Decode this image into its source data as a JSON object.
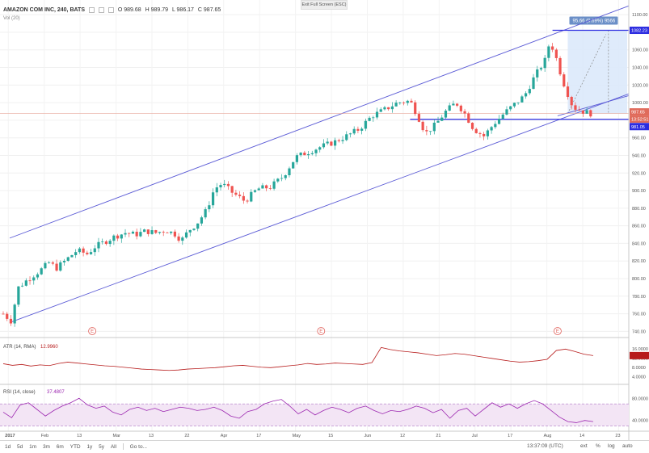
{
  "header": {
    "symbol": "AMAZON COM INC, 240, BATS",
    "o": "O 989.68",
    "h": "H 989.79",
    "l": "L 986.17",
    "c": "C 987.65",
    "volume_label": "Vol (20)"
  },
  "exit_fullscreen": "Exit Full Screen (ESC)",
  "measure_label": "95.66 (9.69%) 9566",
  "price_labels": {
    "target": "1082.23",
    "last": "987.65",
    "countdown": "13:52:51",
    "support": "981.05"
  },
  "atr_label": "ATR (14, RMA)",
  "atr_value": "12.9960",
  "rsi_label": "RSI (14, close)",
  "rsi_value": "37.4807",
  "earnings_marker": "E",
  "time_readout": "13:37:09 (UTC)",
  "range_buttons": [
    "1d",
    "5d",
    "1m",
    "3m",
    "6m",
    "YTD",
    "1y",
    "5y",
    "All",
    "Go to..."
  ],
  "right_buttons": [
    "ext",
    "%",
    "log",
    "auto"
  ],
  "colors": {
    "up": "#26a69a",
    "down": "#ef5350",
    "channel": "#5b5bd6",
    "hline": "#2c2ce0",
    "atr": "#b71c1c",
    "rsi": "#9c27b0",
    "rsi_band": "#f3e5f5",
    "measure": "#dbe9fb"
  },
  "chart_data": [
    {
      "type": "candlestick",
      "title": "AMAZON COM INC, 240, BATS",
      "x_tick_labels": [
        "2017",
        "Feb",
        "13",
        "Mar",
        "13",
        "22",
        "Apr",
        "17",
        "May",
        "15",
        "Jun",
        "12",
        "21",
        "Jul",
        "17",
        "Aug",
        "14",
        "23"
      ],
      "y_tick_labels": [
        "1100.00",
        "1080.00",
        "1060.00",
        "1040.00",
        "1020.00",
        "1000.00",
        "980.00",
        "960.00",
        "940.00",
        "920.00",
        "900.00",
        "880.00",
        "860.00",
        "840.00",
        "820.00",
        "800.00",
        "780.00",
        "760.00",
        "740.00"
      ],
      "ylim": [
        733,
        1113
      ],
      "path_points": [
        [
          0,
          760
        ],
        [
          3,
          752
        ],
        [
          6,
          790
        ],
        [
          10,
          800
        ],
        [
          14,
          808
        ],
        [
          18,
          818
        ],
        [
          21,
          812
        ],
        [
          25,
          822
        ],
        [
          29,
          832
        ],
        [
          33,
          828
        ],
        [
          36,
          836
        ],
        [
          40,
          842
        ],
        [
          44,
          848
        ],
        [
          48,
          852
        ],
        [
          52,
          850
        ],
        [
          56,
          854
        ],
        [
          60,
          852
        ],
        [
          64,
          855
        ],
        [
          68,
          850
        ],
        [
          70,
          843
        ],
        [
          73,
          855
        ],
        [
          76,
          862
        ],
        [
          80,
          878
        ],
        [
          83,
          902
        ],
        [
          86,
          908
        ],
        [
          90,
          898
        ],
        [
          95,
          888
        ],
        [
          100,
          902
        ],
        [
          105,
          904
        ],
        [
          110,
          916
        ],
        [
          115,
          938
        ],
        [
          120,
          944
        ],
        [
          125,
          950
        ],
        [
          130,
          955
        ],
        [
          135,
          962
        ],
        [
          140,
          970
        ],
        [
          145,
          985
        ],
        [
          150,
          992
        ],
        [
          155,
          1000
        ],
        [
          160,
          1002
        ],
        [
          163,
          985
        ],
        [
          166,
          965
        ],
        [
          168,
          970
        ],
        [
          170,
          975
        ],
        [
          174,
          990
        ],
        [
          178,
          1000
        ],
        [
          181,
          990
        ],
        [
          185,
          970
        ],
        [
          189,
          962
        ],
        [
          193,
          976
        ],
        [
          197,
          988
        ],
        [
          201,
          998
        ],
        [
          205,
          1008
        ],
        [
          209,
          1030
        ],
        [
          213,
          1048
        ],
        [
          215,
          1070
        ],
        [
          217,
          1055
        ],
        [
          220,
          1025
        ],
        [
          224,
          995
        ],
        [
          228,
          990
        ],
        [
          232,
          987
        ]
      ],
      "last_price": 987.65,
      "annotations": {
        "channel_upper": [
          [
            0,
            846
          ],
          [
            246,
            1110
          ]
        ],
        "channel_lower": [
          [
            0,
            750
          ],
          [
            246,
            1010
          ]
        ],
        "hline_target": 1082.23,
        "hline_support": 981.05,
        "hline_last": 987.65,
        "earnings_x": [
          35,
          125,
          218
        ]
      }
    },
    {
      "type": "line",
      "title": "ATR (14, RMA)",
      "y_tick_labels": [
        "16.0000",
        "12.0000",
        "8.0000",
        "4.0000"
      ],
      "ylim": [
        2,
        18
      ],
      "values": [
        9.5,
        8.8,
        9.2,
        8.5,
        9.0,
        8.7,
        9.6,
        10.2,
        9.8,
        9.4,
        9.0,
        8.6,
        8.4,
        8.0,
        7.6,
        7.2,
        7.0,
        6.8,
        6.6,
        6.8,
        7.2,
        7.4,
        7.6,
        7.8,
        8.2,
        8.6,
        8.8,
        8.4,
        8.0,
        7.8,
        8.2,
        8.6,
        9.0,
        9.6,
        9.2,
        9.4,
        9.8,
        9.6,
        9.4,
        9.2,
        10.0,
        16.5,
        15.6,
        15.0,
        14.6,
        14.2,
        13.6,
        13.0,
        13.4,
        13.9,
        13.6,
        13.0,
        12.4,
        11.8,
        11.2,
        10.6,
        10.2,
        10.4,
        10.8,
        11.4,
        15.2,
        15.8,
        14.8,
        13.6,
        13.0
      ]
    },
    {
      "type": "line",
      "title": "RSI (14, close)",
      "y_tick_labels": [
        "80.0000",
        "40.0000"
      ],
      "ylim": [
        25,
        95
      ],
      "band": [
        30,
        70
      ],
      "values": [
        55,
        45,
        68,
        72,
        60,
        48,
        58,
        66,
        72,
        80,
        68,
        62,
        66,
        55,
        50,
        60,
        64,
        58,
        62,
        56,
        60,
        64,
        62,
        58,
        60,
        64,
        58,
        48,
        44,
        56,
        60,
        70,
        75,
        78,
        66,
        52,
        60,
        50,
        58,
        64,
        60,
        54,
        62,
        66,
        58,
        52,
        58,
        56,
        60,
        66,
        62,
        54,
        60,
        44,
        58,
        62,
        48,
        60,
        72,
        64,
        70,
        62,
        70,
        76,
        70,
        58,
        46,
        38,
        36,
        40,
        38
      ]
    }
  ]
}
